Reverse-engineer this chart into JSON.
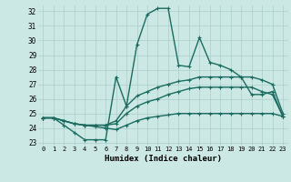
{
  "xlabel": "Humidex (Indice chaleur)",
  "bg_color": "#cce8e4",
  "grid_color": "#aaceca",
  "line_color": "#1a6b60",
  "xlim": [
    -0.5,
    23.5
  ],
  "ylim": [
    22.8,
    32.4
  ],
  "yticks": [
    23,
    24,
    25,
    26,
    27,
    28,
    29,
    30,
    31,
    32
  ],
  "xticks": [
    0,
    1,
    2,
    3,
    4,
    5,
    6,
    7,
    8,
    9,
    10,
    11,
    12,
    13,
    14,
    15,
    16,
    17,
    18,
    19,
    20,
    21,
    22,
    23
  ],
  "series": [
    [
      24.7,
      24.7,
      24.2,
      23.7,
      23.2,
      23.2,
      23.2,
      27.5,
      25.5,
      29.7,
      31.8,
      32.2,
      32.2,
      28.3,
      28.2,
      30.2,
      28.5,
      28.3,
      28.0,
      27.5,
      26.3,
      26.3,
      26.5,
      24.8
    ],
    [
      24.7,
      24.7,
      24.5,
      24.3,
      24.2,
      24.2,
      24.2,
      24.5,
      25.5,
      26.2,
      26.5,
      26.8,
      27.0,
      27.2,
      27.3,
      27.5,
      27.5,
      27.5,
      27.5,
      27.5,
      27.5,
      27.3,
      27.0,
      25.0
    ],
    [
      24.7,
      24.7,
      24.5,
      24.3,
      24.2,
      24.2,
      24.2,
      24.3,
      25.0,
      25.5,
      25.8,
      26.0,
      26.3,
      26.5,
      26.7,
      26.8,
      26.8,
      26.8,
      26.8,
      26.8,
      26.8,
      26.5,
      26.3,
      24.8
    ],
    [
      24.7,
      24.7,
      24.5,
      24.3,
      24.2,
      24.1,
      24.0,
      23.9,
      24.2,
      24.5,
      24.7,
      24.8,
      24.9,
      25.0,
      25.0,
      25.0,
      25.0,
      25.0,
      25.0,
      25.0,
      25.0,
      25.0,
      25.0,
      24.8
    ]
  ]
}
